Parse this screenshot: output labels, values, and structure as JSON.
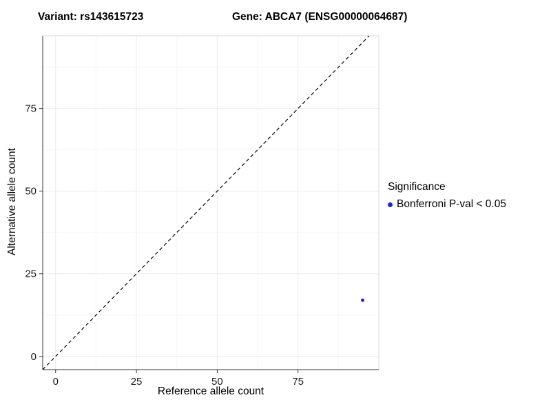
{
  "chart_data": {
    "type": "scatter",
    "title_left": "Variant: rs143615723",
    "title_right": "Gene: ABCA7 (ENSG00000064687)",
    "xlabel": "Reference allele count",
    "ylabel": "Alternative allele count",
    "xlim": [
      -4,
      100
    ],
    "ylim": [
      -4,
      97
    ],
    "xticks": [
      0,
      25,
      50,
      75
    ],
    "yticks": [
      0,
      25,
      50,
      75
    ],
    "minor_step": 12.5,
    "grid": true,
    "identity_line": {
      "style": "dashed",
      "color": "#000000"
    },
    "series": [
      {
        "name": "Bonferroni P-val < 0.05",
        "color": "#2222dd",
        "points": [
          {
            "x": 95,
            "y": 17
          }
        ]
      }
    ],
    "legend": {
      "title": "Significance",
      "position": "right"
    },
    "colors": {
      "grid_major": "#ebebeb",
      "grid_minor": "#f6f6f6",
      "panel_border": "#d8d8d8",
      "axis": "#333333",
      "tick_label": "#1a1a1a",
      "background": "#ffffff"
    }
  }
}
